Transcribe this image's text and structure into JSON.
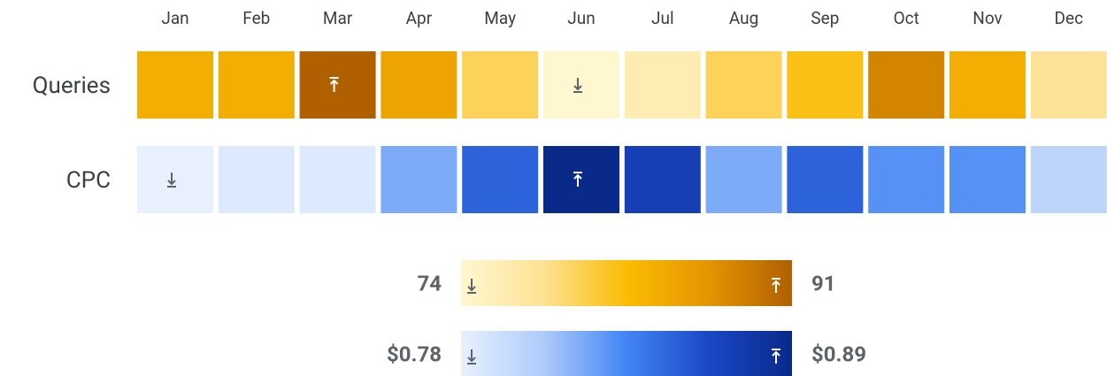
{
  "chart_data": {
    "type": "heatmap",
    "categories": [
      "Jan",
      "Feb",
      "Mar",
      "Apr",
      "May",
      "Jun",
      "Jul",
      "Aug",
      "Sep",
      "Oct",
      "Nov",
      "Dec"
    ],
    "series": [
      {
        "name": "Queries",
        "values": [
          84,
          84,
          91,
          85,
          80,
          74,
          76,
          80,
          82,
          88,
          84,
          78
        ],
        "colorscale": [
          "#fef7d0",
          "#fde293",
          "#fbbc04",
          "#e39400",
          "#b06000"
        ],
        "vlim": [
          74,
          91
        ],
        "vticks": [
          74,
          91
        ]
      },
      {
        "name": "CPC",
        "values": [
          0.78,
          0.785,
          0.785,
          0.82,
          0.85,
          0.89,
          0.87,
          0.82,
          0.85,
          0.83,
          0.83,
          0.8
        ],
        "colorscale": [
          "#e8f0fe",
          "#aecbfa",
          "#4285f4",
          "#1a47c5",
          "#0a2a8a"
        ],
        "vlim": [
          0.78,
          0.89
        ],
        "vticks": [
          {
            "value": 0.78,
            "label": "$0.78"
          },
          {
            "value": 0.89,
            "label": "$0.89"
          }
        ]
      }
    ]
  }
}
